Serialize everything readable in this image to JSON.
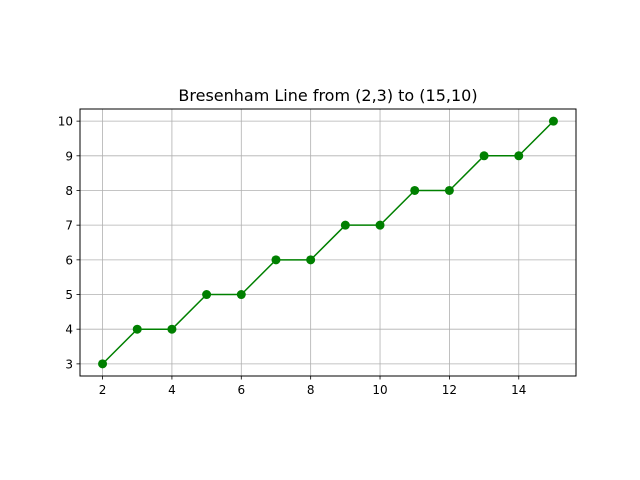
{
  "chart_data": {
    "type": "line",
    "title": "Bresenham Line from (2,3) to (15,10)",
    "xlabel": "",
    "ylabel": "",
    "x": [
      2,
      3,
      4,
      5,
      6,
      7,
      8,
      9,
      10,
      11,
      12,
      13,
      14,
      15
    ],
    "series": [
      {
        "values": [
          3,
          4,
          4,
          5,
          5,
          6,
          6,
          7,
          7,
          8,
          8,
          9,
          9,
          10
        ],
        "color": "#008000",
        "marker": "circle"
      }
    ],
    "xlim": [
      1.35,
      15.65
    ],
    "ylim": [
      2.65,
      10.35
    ],
    "xticks": [
      2,
      4,
      6,
      8,
      10,
      12,
      14
    ],
    "yticks": [
      3,
      4,
      5,
      6,
      7,
      8,
      9,
      10
    ],
    "grid": true,
    "grid_color": "#b0b0b0"
  }
}
